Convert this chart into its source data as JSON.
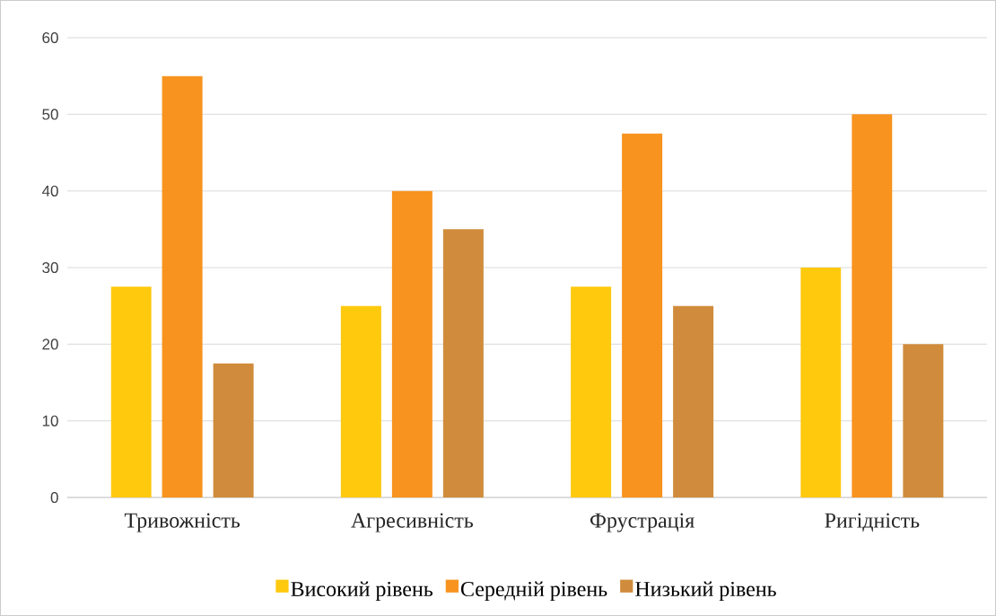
{
  "chart_data": {
    "type": "bar",
    "categories": [
      "Тривожність",
      "Агресивність",
      "Фрустрація",
      "Ригідність"
    ],
    "series": [
      {
        "name": "Високий рівень",
        "color": "#ffc90e",
        "values": [
          27.5,
          25,
          27.5,
          30
        ]
      },
      {
        "name": "Середній рівень",
        "color": "#f7931e",
        "values": [
          55,
          40,
          47.5,
          50
        ]
      },
      {
        "name": "Низький рівень",
        "color": "#d08c3c",
        "values": [
          17.5,
          35,
          25,
          20
        ]
      }
    ],
    "ylim": [
      0,
      60
    ],
    "yticks": [
      0,
      10,
      20,
      30,
      40,
      50,
      60
    ],
    "grid": "y",
    "legend": "bottom"
  }
}
